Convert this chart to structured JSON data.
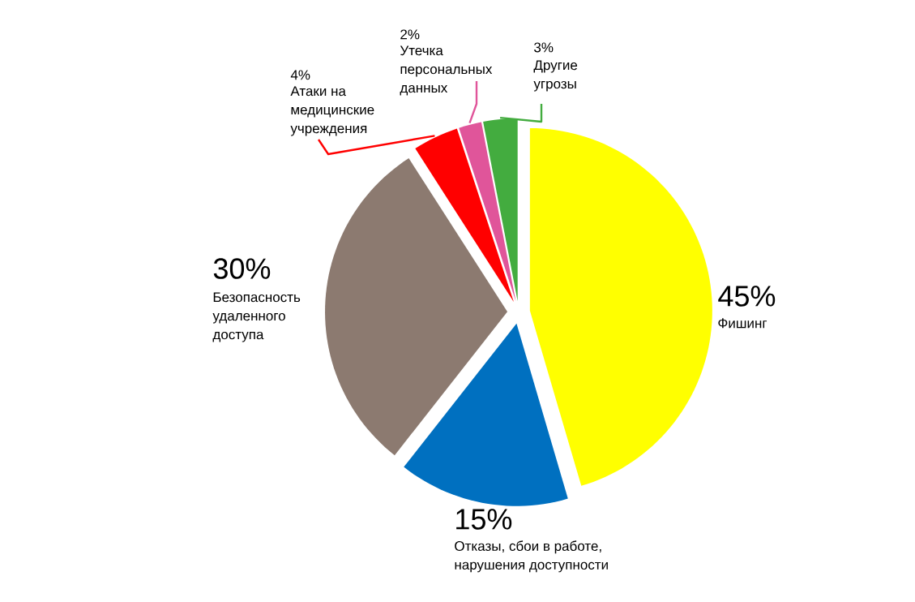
{
  "chart_data": {
    "type": "pie",
    "categories": [
      "Фишинг",
      "Отказы, сбои в работе, нарушения доступности",
      "Безопасность удаленного доступа",
      "Атаки на медицинские учреждения",
      "Утечка персональных данных",
      "Другие угрозы"
    ],
    "values": [
      45,
      15,
      30,
      4,
      2,
      3
    ],
    "value_labels": [
      "45%",
      "15%",
      "30%",
      "4%",
      "2%",
      "3%"
    ],
    "colors": [
      "#ffff00",
      "#0070c0",
      "#8c7a70",
      "#ff0000",
      "#e0559a",
      "#43ac3f"
    ]
  }
}
